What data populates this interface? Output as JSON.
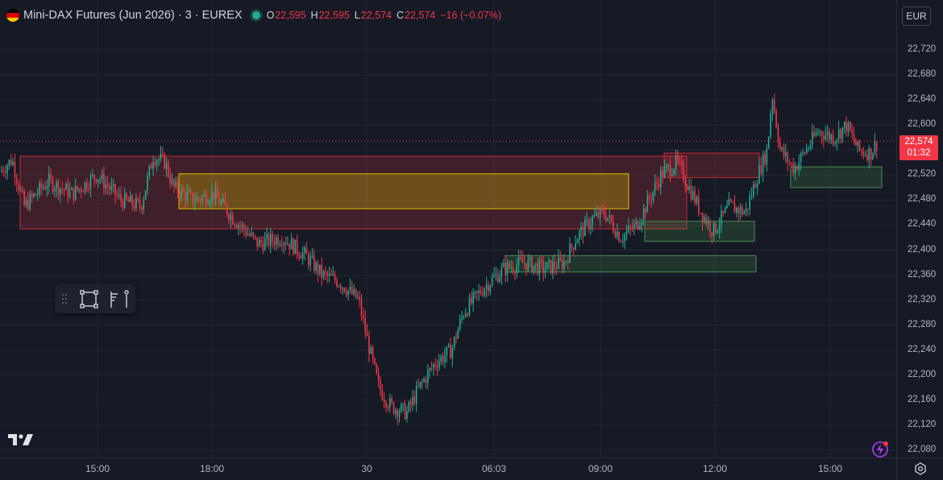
{
  "header": {
    "symbol_title": "Mini-DAX Futures (Jun 2026) · 3 · EUREX",
    "ohlc": {
      "o_label": "O",
      "o_value": "22,595",
      "h_label": "H",
      "h_value": "22,595",
      "l_label": "L",
      "l_value": "22,574",
      "c_label": "C",
      "c_value": "22,574"
    },
    "change": "−16 (−0.07%)"
  },
  "currency_button": "EUR",
  "price_axis": {
    "ticks": [
      "22,720",
      "22,680",
      "22,640",
      "22,600",
      "22,520",
      "22,480",
      "22,440",
      "22,400",
      "22,360",
      "22,320",
      "22,280",
      "22,240",
      "22,200",
      "22,160",
      "22,120",
      "22,080"
    ],
    "last_price": "22,574",
    "countdown": "01:32"
  },
  "time_axis": {
    "ticks": [
      "15:00",
      "18:00",
      "30",
      "06:03",
      "09:00",
      "12:00",
      "15:00"
    ]
  },
  "colors": {
    "up": "#22ab94",
    "down": "#f23645",
    "zone_red": "#f23645",
    "zone_yellow": "#d4b400",
    "zone_green": "#4caf50",
    "background": "#161a25"
  },
  "chart_data": {
    "type": "candlestick",
    "price_range": [
      22080,
      22740
    ],
    "last_price": 22574,
    "path": [
      [
        0,
        22525
      ],
      [
        15,
        22545
      ],
      [
        30,
        22470
      ],
      [
        60,
        22510
      ],
      [
        90,
        22490
      ],
      [
        120,
        22520
      ],
      [
        150,
        22480
      ],
      [
        175,
        22470
      ],
      [
        190,
        22550
      ],
      [
        205,
        22540
      ],
      [
        215,
        22500
      ],
      [
        240,
        22480
      ],
      [
        265,
        22490
      ],
      [
        290,
        22450
      ],
      [
        320,
        22410
      ],
      [
        350,
        22420
      ],
      [
        380,
        22390
      ],
      [
        400,
        22360
      ],
      [
        420,
        22350
      ],
      [
        445,
        22320
      ],
      [
        455,
        22260
      ],
      [
        470,
        22180
      ],
      [
        485,
        22150
      ],
      [
        505,
        22140
      ],
      [
        520,
        22180
      ],
      [
        540,
        22220
      ],
      [
        560,
        22240
      ],
      [
        575,
        22300
      ],
      [
        600,
        22340
      ],
      [
        625,
        22370
      ],
      [
        650,
        22380
      ],
      [
        675,
        22370
      ],
      [
        700,
        22380
      ],
      [
        715,
        22420
      ],
      [
        735,
        22450
      ],
      [
        750,
        22460
      ],
      [
        770,
        22420
      ],
      [
        790,
        22440
      ],
      [
        805,
        22480
      ],
      [
        820,
        22520
      ],
      [
        840,
        22540
      ],
      [
        855,
        22500
      ],
      [
        870,
        22460
      ],
      [
        885,
        22430
      ],
      [
        905,
        22470
      ],
      [
        925,
        22460
      ],
      [
        940,
        22520
      ],
      [
        952,
        22560
      ],
      [
        958,
        22650
      ],
      [
        968,
        22560
      ],
      [
        985,
        22530
      ],
      [
        1000,
        22560
      ],
      [
        1015,
        22590
      ],
      [
        1035,
        22580
      ],
      [
        1050,
        22600
      ],
      [
        1065,
        22560
      ],
      [
        1080,
        22555
      ],
      [
        1092,
        22580
      ]
    ],
    "zones": [
      {
        "color": "red",
        "x1": 25,
        "x2": 852,
        "top": 22550,
        "bottom": 22434
      },
      {
        "color": "yellow",
        "x1": 222,
        "x2": 780,
        "top": 22522,
        "bottom": 22466
      },
      {
        "color": "red",
        "x1": 824,
        "x2": 942,
        "top": 22555,
        "bottom": 22516
      },
      {
        "color": "green",
        "x1": 800,
        "x2": 936,
        "top": 22446,
        "bottom": 22414
      },
      {
        "color": "green",
        "x1": 627,
        "x2": 938,
        "top": 22391,
        "bottom": 22365
      },
      {
        "color": "green",
        "x1": 981,
        "x2": 1094,
        "top": 22533,
        "bottom": 22500
      }
    ]
  },
  "toolbar": {
    "icons": [
      "drag-handle-icon",
      "rectangle-tool-icon",
      "fib-tool-icon"
    ]
  }
}
